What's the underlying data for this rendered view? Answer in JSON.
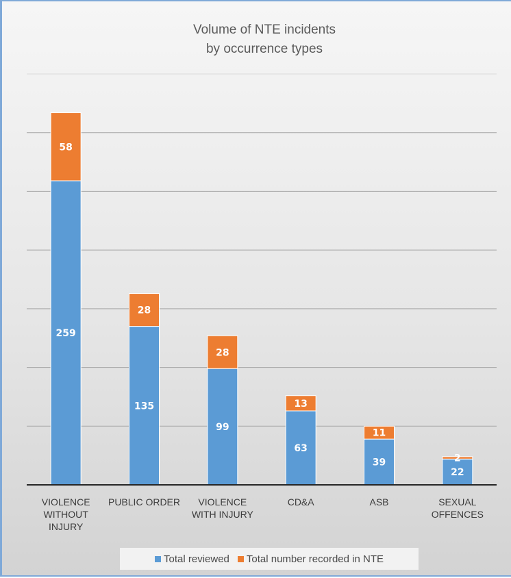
{
  "chart_data": {
    "type": "bar",
    "stacked": true,
    "title": [
      "Volume of NTE incidents",
      "by occurrence types"
    ],
    "xlabel": "",
    "ylabel": "",
    "ylim": [
      0,
      350
    ],
    "grid": true,
    "legend_position": "bottom",
    "categories": [
      [
        "VIOLENCE",
        "WITHOUT",
        "INJURY"
      ],
      [
        "PUBLIC ORDER"
      ],
      [
        "VIOLENCE",
        "WITH INJURY"
      ],
      [
        "CD&A"
      ],
      [
        "ASB"
      ],
      [
        "SEXUAL",
        "OFFENCES"
      ]
    ],
    "series": [
      {
        "name": "Total reviewed",
        "color": "#5b9bd5",
        "values": [
          259,
          135,
          99,
          63,
          39,
          22
        ]
      },
      {
        "name": "Total number recorded in NTE",
        "color": "#ed7d31",
        "values": [
          58,
          28,
          28,
          13,
          11,
          2
        ]
      }
    ]
  }
}
